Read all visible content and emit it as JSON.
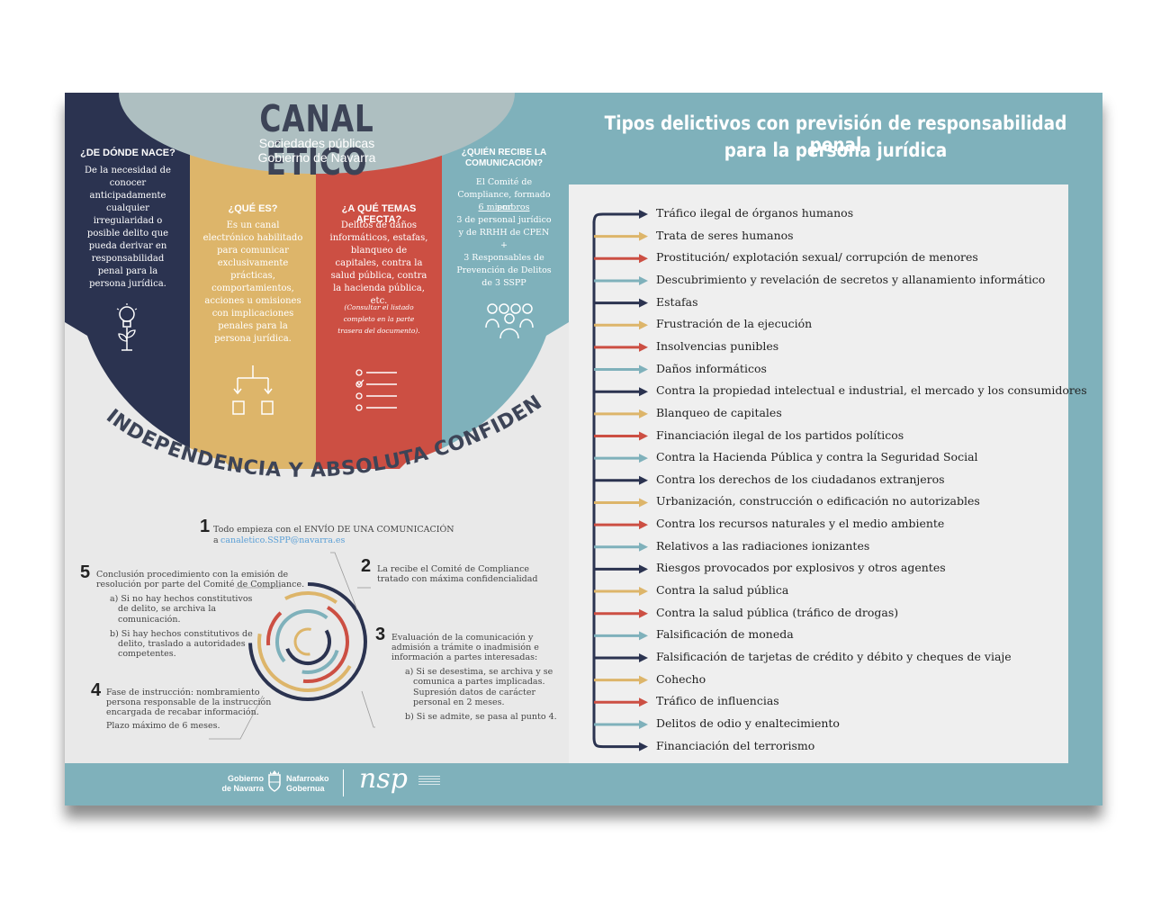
{
  "header": {
    "title": "CANAL ÉTICO",
    "subtitle_line1": "Sociedades públicas",
    "subtitle_line2": "Gobierno de Navarra"
  },
  "columns": [
    {
      "title": "¿DE DÓNDE NACE?",
      "text": "De la necesidad de conocer anticipadamente cualquier irregularidad o posible delito que pueda derivar en responsabilidad penal para la persona jurídica.",
      "icon": "lightbulb-plant-icon",
      "color": "#2b3350"
    },
    {
      "title": "¿QUÉ ES?",
      "text": "Es un canal electrónico habilitado para comunicar exclusivamente prácticas, comportamientos, acciones u omisiones con implicaciones penales para la persona jurídica.",
      "icon": "flowchart-icon",
      "color": "#ddb56a"
    },
    {
      "title": "¿A QUÉ TEMAS AFECTA?",
      "text": "Delitos de daños informáticos, estafas, blanqueo de capitales, contra la salud pública, contra la hacienda pública, etc.",
      "note": "(Consultar el listado completo en la parte trasera del documento).",
      "icon": "checklist-icon",
      "color": "#cc4f43"
    },
    {
      "title": "¿QUIÉN RECIBE LA COMUNICACIÓN?",
      "text_a": "El Comité de Compliance, formado por",
      "text_b": "6 miembros",
      "text_c": "3 de personal jurídico y de RRHH de CPEN",
      "text_d": "+",
      "text_e": "3 Responsables de Prevención de Delitos de 3 SSPP",
      "icon": "group-icon",
      "color": "#7fb1bb"
    }
  ],
  "arc_text": "INDEPENDENCIA Y ABSOLUTA CONFIDENCIALIDAD",
  "steps": {
    "s1_num": "1",
    "s1_text": "Todo empieza con el ENVÍO DE UNA COMUNICACIÓN",
    "s1_a": "a",
    "s1_email": "canaletico.SSPP@navarra.es",
    "s2_num": "2",
    "s2_text1": "La recibe el Comité de Compliance",
    "s2_text2": "tratado con máxima confidencialidad",
    "s3_num": "3",
    "s3_text1": "Evaluación de la comunicación y",
    "s3_text2": "admisión a trámite o inadmisión e",
    "s3_text3": "información a partes interesadas:",
    "s3_a1": "a) Si se desestima, se archiva y se",
    "s3_a2": "comunica a partes implicadas.",
    "s3_a3": "Supresión datos de carácter",
    "s3_a4": "personal en 2 meses.",
    "s3_b": "b) Si se admite, se pasa al punto 4.",
    "s4_num": "4",
    "s4_text1": "Fase de instrucción: nombramiento",
    "s4_text2": "persona responsable de la instrucción",
    "s4_text3": "encargada de recabar información.",
    "s4_text4": "Plazo máximo de 6 meses.",
    "s5_num": "5",
    "s5_text1": "Conclusión procedimiento con la emisión de",
    "s5_text2": "resolución por parte del Comité de Compliance.",
    "s5_a1": "a) Si no hay hechos constitutivos",
    "s5_a2": "de delito, se archiva la",
    "s5_a3": "comunicación.",
    "s5_b1": "b) Si hay hechos constitutivos de",
    "s5_b2": "delito, traslado a autoridades",
    "s5_b3": "competentes."
  },
  "right": {
    "title_line1": "Tipos delictivos con previsión de responsabilidad penal",
    "title_line2": "para la persona jurídica",
    "arrow_colors": [
      "#2b3350",
      "#ddb56a",
      "#cc4f43",
      "#7fb1bb"
    ],
    "crimes": [
      "Tráfico ilegal de órganos humanos",
      "Trata de seres humanos",
      "Prostitución/ explotación sexual/ corrupción de menores",
      "Descubrimiento y revelación de secretos y allanamiento informático",
      "Estafas",
      "Frustración de la ejecución",
      "Insolvencias punibles",
      "Daños informáticos",
      "Contra la propiedad intelectual e industrial, el mercado y los consumidores",
      "Blanqueo de capitales",
      "Financiación ilegal de los partidos políticos",
      "Contra la Hacienda Pública y contra la Seguridad Social",
      "Contra los derechos de los ciudadanos extranjeros",
      "Urbanización, construcción o edificación no autorizables",
      "Contra los recursos naturales y el medio ambiente",
      "Relativos a las radiaciones ionizantes",
      "Riesgos provocados por explosivos y otros agentes",
      "Contra la salud pública",
      "Contra la salud pública (tráfico de drogas)",
      "Falsificación de moneda",
      "Falsificación de tarjetas de crédito y débito y cheques de viaje",
      "Cohecho",
      "Tráfico de influencias",
      "Delitos de odio y enaltecimiento",
      "Financiación del terrorismo"
    ]
  },
  "footer": {
    "gov_es_1": "Gobierno",
    "gov_es_2": "de Navarra",
    "gov_eu_1": "Nafarroako",
    "gov_eu_2": "Gobernua",
    "nsp_logo": "nsp",
    "colors": {
      "bar": "#7fb1bb"
    }
  }
}
